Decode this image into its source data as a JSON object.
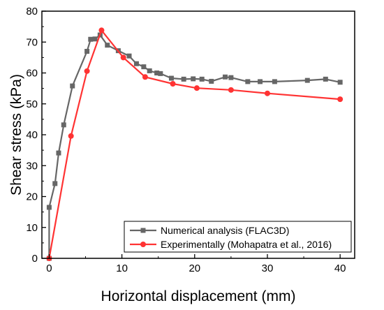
{
  "chart_data": {
    "type": "line",
    "xlabel": "Horizontal displacement (mm)",
    "ylabel": "Shear stress (kPa)",
    "xlim": [
      -1,
      42
    ],
    "ylim": [
      0,
      80
    ],
    "xticks": [
      0,
      10,
      20,
      30,
      40
    ],
    "yticks": [
      0,
      10,
      20,
      30,
      40,
      50,
      60,
      70,
      80
    ],
    "grid": false,
    "legend_position": "bottom-right",
    "series": [
      {
        "name": "Numerical analysis (FLAC3D)",
        "color": "#666666",
        "marker": "square",
        "x": [
          0,
          0,
          0.8,
          1.3,
          2.0,
          3.2,
          5.2,
          5.7,
          6.3,
          7.0,
          8.0,
          9.5,
          11.0,
          12.0,
          13.0,
          13.8,
          14.8,
          15.3,
          16.8,
          18.5,
          19.8,
          21.0,
          22.3,
          24.2,
          25.0,
          27.3,
          29.0,
          31.0,
          35.5,
          38.0,
          40.0
        ],
        "y": [
          0,
          16.5,
          24.2,
          34.1,
          43.2,
          55.8,
          67.0,
          70.9,
          71.0,
          72.3,
          69.0,
          67.2,
          65.5,
          63.0,
          62.0,
          60.7,
          60.0,
          59.8,
          58.3,
          58.0,
          58.1,
          58.0,
          57.3,
          58.7,
          58.5,
          57.2,
          57.2,
          57.2,
          57.6,
          58.0,
          57.0
        ]
      },
      {
        "name": "Experimentally (Mohapatra et al., 2016)",
        "color": "#ff3333",
        "marker": "circle",
        "x": [
          0,
          3.0,
          5.2,
          7.2,
          10.2,
          13.2,
          17.0,
          20.3,
          25.0,
          30.0,
          40.0
        ],
        "y": [
          0,
          39.6,
          60.6,
          73.8,
          65.0,
          58.7,
          56.5,
          55.1,
          54.5,
          53.4,
          51.5
        ]
      }
    ]
  }
}
